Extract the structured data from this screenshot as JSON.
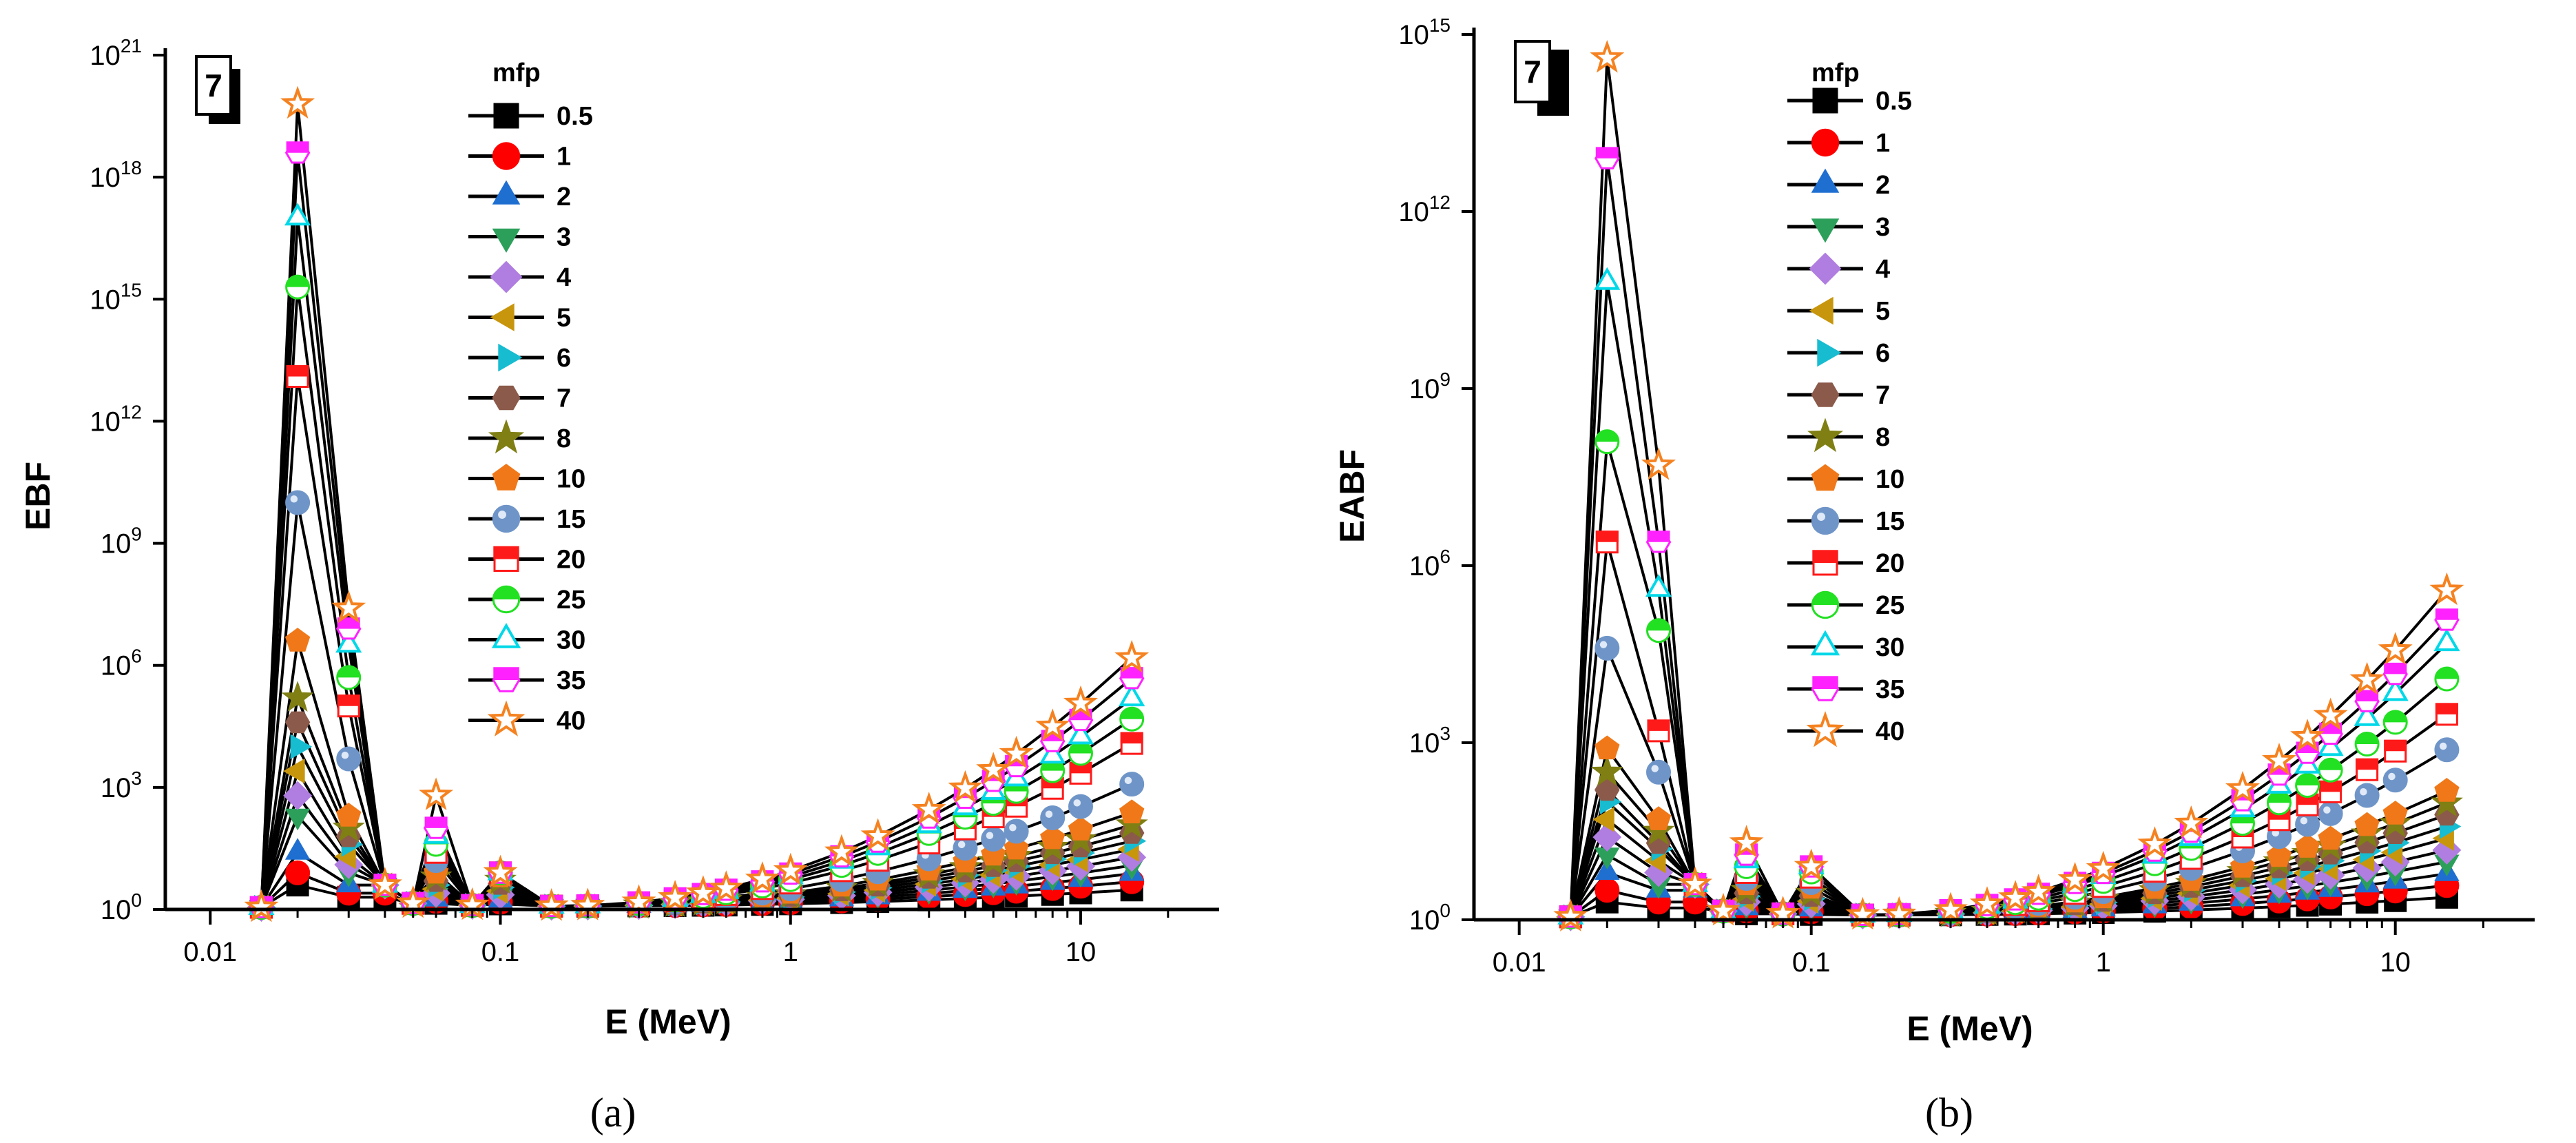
{
  "figure": {
    "panel_a_label": "(a)",
    "panel_b_label": "(b)",
    "panel_id": "7",
    "legend_title": "mfp"
  },
  "series_styles": [
    {
      "name": "0.5",
      "shape": "square",
      "fill": "#000000",
      "stroke": "#000000"
    },
    {
      "name": "1",
      "shape": "circle",
      "fill": "#ff0000",
      "stroke": "#ff0000"
    },
    {
      "name": "2",
      "shape": "triangle-up",
      "fill": "#1f6fd1",
      "stroke": "#1f6fd1"
    },
    {
      "name": "3",
      "shape": "triangle-down",
      "fill": "#2ca05a",
      "stroke": "#2ca05a"
    },
    {
      "name": "4",
      "shape": "diamond",
      "fill": "#b07de0",
      "stroke": "#b07de0"
    },
    {
      "name": "5",
      "shape": "triangle-left",
      "fill": "#c8960c",
      "stroke": "#c8960c"
    },
    {
      "name": "6",
      "shape": "triangle-right",
      "fill": "#17bcd0",
      "stroke": "#17bcd0"
    },
    {
      "name": "7",
      "shape": "hexagon",
      "fill": "#8b5a4a",
      "stroke": "#8b5a4a"
    },
    {
      "name": "8",
      "shape": "star",
      "fill": "#7f7f14",
      "stroke": "#7f7f14"
    },
    {
      "name": "10",
      "shape": "pentagon",
      "fill": "#f07818",
      "stroke": "#f07818"
    },
    {
      "name": "15",
      "shape": "sphere",
      "fill": "#6f95c8",
      "stroke": "#6f95c8"
    },
    {
      "name": "20",
      "shape": "square-half",
      "fill": "#ff1a1a",
      "stroke": "#ff1a1a"
    },
    {
      "name": "25",
      "shape": "circle-half",
      "fill": "#22e022",
      "stroke": "#22e022"
    },
    {
      "name": "30",
      "shape": "triangle-open",
      "fill": "#ffffff",
      "stroke": "#00d8e8"
    },
    {
      "name": "35",
      "shape": "hexagon-half",
      "fill": "#ff22ff",
      "stroke": "#ff22ff"
    },
    {
      "name": "40",
      "shape": "star-open",
      "fill": "#ffffff",
      "stroke": "#f58220"
    }
  ],
  "chart_data": [
    {
      "type": "line",
      "title": "",
      "xlabel": "E (MeV)",
      "ylabel": "EBF",
      "xscale": "log",
      "yscale": "log",
      "xlim": [
        0.007,
        30
      ],
      "ylim_exp": [
        0,
        21
      ],
      "x_ticks": [
        "0.01",
        "0.1",
        "1",
        "10"
      ],
      "y_tick_exponents": [
        0,
        3,
        6,
        9,
        12,
        15,
        18,
        21
      ],
      "y_tick_base": "10",
      "legend_position": "top-center",
      "x": [
        0.015,
        0.02,
        0.03,
        0.04,
        0.05,
        0.06,
        0.08,
        0.1,
        0.15,
        0.2,
        0.3,
        0.4,
        0.5,
        0.6,
        0.8,
        1,
        1.5,
        2,
        3,
        4,
        5,
        6,
        8,
        10,
        15
      ],
      "peak_log10": {
        "0.5": 0.6,
        "1": 0.9,
        "2": 1.4,
        "3": 2.3,
        "4": 2.8,
        "5": 3.4,
        "6": 4.0,
        "7": 4.6,
        "8": 5.2,
        "10": 6.6,
        "15": 10.0,
        "20": 13.1,
        "25": 15.3,
        "30": 17.0,
        "35": 18.6,
        "40": 19.8
      },
      "second_peak_log10": {
        "0.5": 0.3,
        "1": 0.4,
        "2": 0.6,
        "3": 0.9,
        "4": 1.1,
        "5": 1.3,
        "6": 1.6,
        "7": 1.8,
        "8": 2.0,
        "10": 2.3,
        "15": 3.7,
        "20": 5.0,
        "25": 5.7,
        "30": 6.5,
        "35": 6.9,
        "40": 7.4
      },
      "third_peak_log10": {
        "0.5": 0.15,
        "1": 0.2,
        "2": 0.25,
        "3": 0.35,
        "4": 0.4,
        "5": 0.5,
        "6": 0.6,
        "7": 0.7,
        "8": 0.8,
        "10": 0.9,
        "15": 1.2,
        "20": 1.4,
        "25": 1.6,
        "30": 1.8,
        "35": 2.0,
        "40": 2.8
      },
      "end_log10": {
        "0.5": 0.4,
        "1": 0.6,
        "2": 0.8,
        "3": 1.0,
        "4": 1.2,
        "5": 1.4,
        "6": 1.6,
        "7": 1.8,
        "8": 2.0,
        "10": 2.3,
        "15": 3.0,
        "20": 4.0,
        "25": 4.6,
        "30": 5.1,
        "35": 5.6,
        "40": 6.1
      }
    },
    {
      "type": "line",
      "title": "",
      "xlabel": "E (MeV)",
      "ylabel": "EABF",
      "xscale": "log",
      "yscale": "log",
      "xlim": [
        0.007,
        30
      ],
      "ylim_exp": [
        0,
        15
      ],
      "x_ticks": [
        "0.01",
        "0.1",
        "1",
        "10"
      ],
      "y_tick_exponents": [
        0,
        3,
        6,
        9,
        12,
        15
      ],
      "y_tick_base": "10",
      "legend_position": "top-center",
      "x": [
        0.015,
        0.02,
        0.03,
        0.04,
        0.05,
        0.06,
        0.08,
        0.1,
        0.15,
        0.2,
        0.3,
        0.4,
        0.5,
        0.6,
        0.8,
        1,
        1.5,
        2,
        3,
        4,
        5,
        6,
        8,
        10,
        15
      ],
      "peak_log10": {
        "0.5": 0.3,
        "1": 0.5,
        "2": 0.8,
        "3": 1.1,
        "4": 1.4,
        "5": 1.7,
        "6": 2.0,
        "7": 2.2,
        "8": 2.5,
        "10": 2.9,
        "15": 4.6,
        "20": 6.4,
        "25": 8.1,
        "30": 10.8,
        "35": 12.9,
        "40": 14.6
      },
      "second_peak_log10": {
        "0.5": 0.2,
        "1": 0.3,
        "2": 0.5,
        "3": 0.6,
        "4": 0.8,
        "5": 1.0,
        "6": 1.2,
        "7": 1.3,
        "8": 1.5,
        "10": 1.7,
        "15": 2.5,
        "20": 3.2,
        "25": 4.9,
        "30": 5.6,
        "35": 6.4,
        "40": 7.7
      },
      "third_peak_log10": {
        "0.5": 0.1,
        "1": 0.15,
        "2": 0.2,
        "3": 0.25,
        "4": 0.3,
        "5": 0.35,
        "6": 0.4,
        "7": 0.45,
        "8": 0.5,
        "10": 0.6,
        "15": 0.7,
        "20": 0.8,
        "25": 0.9,
        "30": 1.0,
        "35": 1.1,
        "40": 1.3
      },
      "end_log10": {
        "0.5": 0.3,
        "1": 0.5,
        "2": 0.7,
        "3": 0.9,
        "4": 1.1,
        "5": 1.3,
        "6": 1.5,
        "7": 1.7,
        "8": 1.9,
        "10": 2.1,
        "15": 2.8,
        "20": 3.4,
        "25": 4.0,
        "30": 4.6,
        "35": 5.0,
        "40": 5.5
      }
    }
  ]
}
